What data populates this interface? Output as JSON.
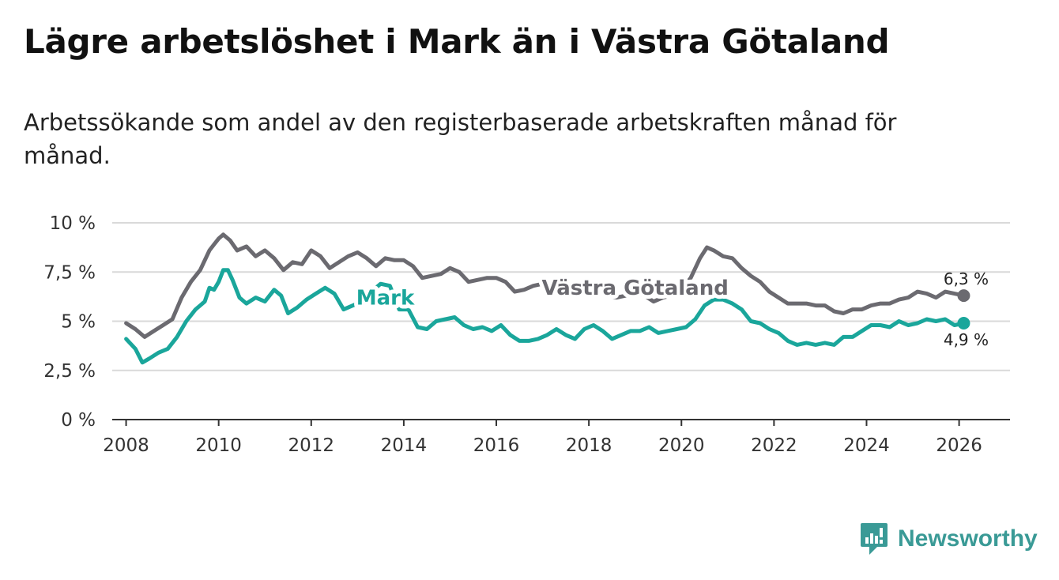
{
  "title": "Lägre arbetslöshet i Mark än i Västra Götaland",
  "subtitle": "Arbetssökande som andel av den registerbaserade arbetskraften månad för månad.",
  "brand": {
    "name": "Newsworthy",
    "icon": "newsworthy-logo-icon",
    "color": "#3a9a96"
  },
  "chart_data": {
    "type": "line",
    "title": "Lägre arbetslöshet i Mark än i Västra Götaland",
    "xlabel": "",
    "ylabel": "",
    "xlim": [
      2007.7,
      2027.1
    ],
    "ylim": [
      0,
      10
    ],
    "x_ticks": [
      2008,
      2010,
      2012,
      2014,
      2016,
      2018,
      2020,
      2022,
      2024,
      2026
    ],
    "x_tick_labels": [
      "2008",
      "2010",
      "2012",
      "2014",
      "2016",
      "2018",
      "2020",
      "2022",
      "2024",
      "2026"
    ],
    "y_ticks": [
      0,
      2.5,
      5,
      7.5,
      10
    ],
    "y_tick_labels": [
      "0 %",
      "2,5 %",
      "5 %",
      "7,5 %",
      "10 %"
    ],
    "grid": "horizontal",
    "series": [
      {
        "name": "Västra Götaland",
        "color": "#6b6a70",
        "end_label": "6,3 %",
        "points": [
          [
            2008.0,
            4.9
          ],
          [
            2008.2,
            4.6
          ],
          [
            2008.4,
            4.2
          ],
          [
            2008.6,
            4.5
          ],
          [
            2008.8,
            4.8
          ],
          [
            2009.0,
            5.1
          ],
          [
            2009.2,
            6.2
          ],
          [
            2009.4,
            7.0
          ],
          [
            2009.6,
            7.6
          ],
          [
            2009.8,
            8.6
          ],
          [
            2009.9,
            8.9
          ],
          [
            2010.0,
            9.2
          ],
          [
            2010.1,
            9.4
          ],
          [
            2010.25,
            9.1
          ],
          [
            2010.4,
            8.6
          ],
          [
            2010.6,
            8.8
          ],
          [
            2010.8,
            8.3
          ],
          [
            2011.0,
            8.6
          ],
          [
            2011.2,
            8.2
          ],
          [
            2011.4,
            7.6
          ],
          [
            2011.6,
            8.0
          ],
          [
            2011.8,
            7.9
          ],
          [
            2012.0,
            8.6
          ],
          [
            2012.2,
            8.3
          ],
          [
            2012.4,
            7.7
          ],
          [
            2012.6,
            8.0
          ],
          [
            2012.8,
            8.3
          ],
          [
            2013.0,
            8.5
          ],
          [
            2013.2,
            8.2
          ],
          [
            2013.4,
            7.8
          ],
          [
            2013.6,
            8.2
          ],
          [
            2013.8,
            8.1
          ],
          [
            2014.0,
            8.1
          ],
          [
            2014.2,
            7.8
          ],
          [
            2014.4,
            7.2
          ],
          [
            2014.6,
            7.3
          ],
          [
            2014.8,
            7.4
          ],
          [
            2015.0,
            7.7
          ],
          [
            2015.2,
            7.5
          ],
          [
            2015.4,
            7.0
          ],
          [
            2015.6,
            7.1
          ],
          [
            2015.8,
            7.2
          ],
          [
            2016.0,
            7.2
          ],
          [
            2016.2,
            7.0
          ],
          [
            2016.4,
            6.5
          ],
          [
            2016.6,
            6.6
          ],
          [
            2016.8,
            6.8
          ],
          [
            2017.0,
            6.9
          ],
          [
            2017.2,
            6.8
          ],
          [
            2017.4,
            6.4
          ],
          [
            2017.6,
            6.5
          ],
          [
            2017.8,
            6.6
          ],
          [
            2018.0,
            6.8
          ],
          [
            2018.2,
            6.6
          ],
          [
            2018.4,
            6.3
          ],
          [
            2018.6,
            6.2
          ],
          [
            2018.8,
            6.3
          ],
          [
            2019.0,
            6.4
          ],
          [
            2019.2,
            6.3
          ],
          [
            2019.4,
            6.0
          ],
          [
            2019.6,
            6.2
          ],
          [
            2019.8,
            6.3
          ],
          [
            2020.0,
            6.6
          ],
          [
            2020.2,
            7.2
          ],
          [
            2020.4,
            8.2
          ],
          [
            2020.55,
            8.75
          ],
          [
            2020.7,
            8.6
          ],
          [
            2020.9,
            8.3
          ],
          [
            2021.1,
            8.2
          ],
          [
            2021.3,
            7.7
          ],
          [
            2021.5,
            7.3
          ],
          [
            2021.7,
            7.0
          ],
          [
            2021.9,
            6.5
          ],
          [
            2022.1,
            6.2
          ],
          [
            2022.3,
            5.9
          ],
          [
            2022.5,
            5.9
          ],
          [
            2022.7,
            5.9
          ],
          [
            2022.9,
            5.8
          ],
          [
            2023.1,
            5.8
          ],
          [
            2023.3,
            5.5
          ],
          [
            2023.5,
            5.4
          ],
          [
            2023.7,
            5.6
          ],
          [
            2023.9,
            5.6
          ],
          [
            2024.1,
            5.8
          ],
          [
            2024.3,
            5.9
          ],
          [
            2024.5,
            5.9
          ],
          [
            2024.7,
            6.1
          ],
          [
            2024.9,
            6.2
          ],
          [
            2025.1,
            6.5
          ],
          [
            2025.3,
            6.4
          ],
          [
            2025.5,
            6.2
          ],
          [
            2025.7,
            6.5
          ],
          [
            2025.9,
            6.4
          ],
          [
            2026.1,
            6.3
          ]
        ]
      },
      {
        "name": "Mark",
        "color": "#1aa69b",
        "end_label": "4,9 %",
        "points": [
          [
            2008.0,
            4.1
          ],
          [
            2008.2,
            3.6
          ],
          [
            2008.35,
            2.9
          ],
          [
            2008.5,
            3.1
          ],
          [
            2008.7,
            3.4
          ],
          [
            2008.9,
            3.6
          ],
          [
            2009.1,
            4.2
          ],
          [
            2009.3,
            5.0
          ],
          [
            2009.5,
            5.6
          ],
          [
            2009.7,
            6.0
          ],
          [
            2009.8,
            6.7
          ],
          [
            2009.9,
            6.6
          ],
          [
            2010.0,
            7.0
          ],
          [
            2010.1,
            7.6
          ],
          [
            2010.2,
            7.6
          ],
          [
            2010.3,
            7.1
          ],
          [
            2010.45,
            6.2
          ],
          [
            2010.6,
            5.9
          ],
          [
            2010.8,
            6.2
          ],
          [
            2011.0,
            6.0
          ],
          [
            2011.2,
            6.6
          ],
          [
            2011.35,
            6.3
          ],
          [
            2011.5,
            5.4
          ],
          [
            2011.7,
            5.7
          ],
          [
            2011.9,
            6.1
          ],
          [
            2012.1,
            6.4
          ],
          [
            2012.3,
            6.7
          ],
          [
            2012.5,
            6.4
          ],
          [
            2012.7,
            5.6
          ],
          [
            2012.9,
            5.8
          ],
          [
            2013.1,
            6.0
          ],
          [
            2013.3,
            6.5
          ],
          [
            2013.5,
            6.9
          ],
          [
            2013.7,
            6.8
          ],
          [
            2013.9,
            5.6
          ],
          [
            2014.1,
            5.6
          ],
          [
            2014.3,
            4.7
          ],
          [
            2014.5,
            4.6
          ],
          [
            2014.7,
            5.0
          ],
          [
            2014.9,
            5.1
          ],
          [
            2015.1,
            5.2
          ],
          [
            2015.3,
            4.8
          ],
          [
            2015.5,
            4.6
          ],
          [
            2015.7,
            4.7
          ],
          [
            2015.9,
            4.5
          ],
          [
            2016.1,
            4.8
          ],
          [
            2016.3,
            4.3
          ],
          [
            2016.5,
            4.0
          ],
          [
            2016.7,
            4.0
          ],
          [
            2016.9,
            4.1
          ],
          [
            2017.1,
            4.3
          ],
          [
            2017.3,
            4.6
          ],
          [
            2017.5,
            4.3
          ],
          [
            2017.7,
            4.1
          ],
          [
            2017.9,
            4.6
          ],
          [
            2018.1,
            4.8
          ],
          [
            2018.3,
            4.5
          ],
          [
            2018.5,
            4.1
          ],
          [
            2018.7,
            4.3
          ],
          [
            2018.9,
            4.5
          ],
          [
            2019.1,
            4.5
          ],
          [
            2019.3,
            4.7
          ],
          [
            2019.5,
            4.4
          ],
          [
            2019.7,
            4.5
          ],
          [
            2019.9,
            4.6
          ],
          [
            2020.1,
            4.7
          ],
          [
            2020.3,
            5.1
          ],
          [
            2020.5,
            5.8
          ],
          [
            2020.7,
            6.1
          ],
          [
            2020.9,
            6.1
          ],
          [
            2021.1,
            5.9
          ],
          [
            2021.3,
            5.6
          ],
          [
            2021.5,
            5.0
          ],
          [
            2021.7,
            4.9
          ],
          [
            2021.9,
            4.6
          ],
          [
            2022.1,
            4.4
          ],
          [
            2022.3,
            4.0
          ],
          [
            2022.5,
            3.8
          ],
          [
            2022.7,
            3.9
          ],
          [
            2022.9,
            3.8
          ],
          [
            2023.1,
            3.9
          ],
          [
            2023.3,
            3.8
          ],
          [
            2023.5,
            4.2
          ],
          [
            2023.7,
            4.2
          ],
          [
            2023.9,
            4.5
          ],
          [
            2024.1,
            4.8
          ],
          [
            2024.3,
            4.8
          ],
          [
            2024.5,
            4.7
          ],
          [
            2024.7,
            5.0
          ],
          [
            2024.9,
            4.8
          ],
          [
            2025.1,
            4.9
          ],
          [
            2025.3,
            5.1
          ],
          [
            2025.5,
            5.0
          ],
          [
            2025.7,
            5.1
          ],
          [
            2025.9,
            4.8
          ],
          [
            2026.1,
            4.9
          ]
        ]
      }
    ],
    "annotations": [
      {
        "text": "Mark",
        "series": "Mark",
        "x": 2013.6,
        "y": 6.2
      },
      {
        "text": "Västra Götaland",
        "series": "Västra Götaland",
        "x": 2019.0,
        "y": 6.7
      }
    ]
  }
}
